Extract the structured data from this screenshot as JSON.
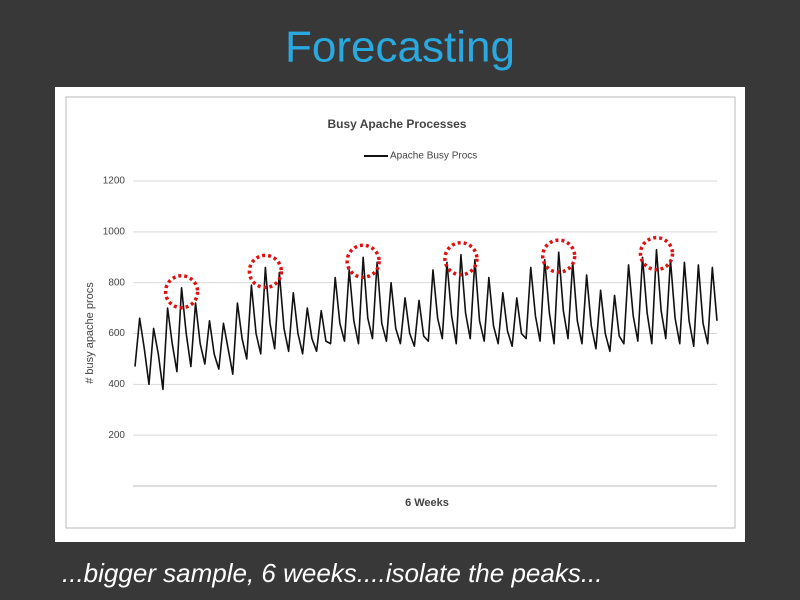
{
  "slide": {
    "title": "Forecasting",
    "caption": "...bigger sample, 6 weeks....isolate the peaks..."
  },
  "chart_data": {
    "type": "line",
    "title": "Busy Apache Processes",
    "xlabel": "6 Weeks",
    "ylabel": "# busy apache procs",
    "ylim": [
      0,
      1200
    ],
    "yticks": [
      200,
      400,
      600,
      800,
      1000,
      1200
    ],
    "grid": true,
    "legend": "top",
    "series": [
      {
        "name": "Apache Busy Procs",
        "color": "#111111",
        "values": [
          470,
          660,
          540,
          400,
          620,
          520,
          380,
          700,
          560,
          450,
          780,
          600,
          470,
          720,
          560,
          480,
          650,
          520,
          460,
          640,
          540,
          440,
          720,
          580,
          500,
          790,
          600,
          520,
          860,
          640,
          540,
          840,
          620,
          530,
          760,
          600,
          520,
          700,
          580,
          530,
          690,
          570,
          560,
          820,
          640,
          570,
          850,
          650,
          560,
          900,
          660,
          580,
          880,
          640,
          570,
          800,
          620,
          560,
          740,
          600,
          550,
          730,
          590,
          570,
          850,
          660,
          580,
          880,
          670,
          560,
          910,
          680,
          580,
          890,
          650,
          570,
          820,
          630,
          560,
          760,
          610,
          550,
          740,
          600,
          580,
          860,
          670,
          570,
          890,
          680,
          560,
          920,
          690,
          580,
          880,
          650,
          560,
          830,
          630,
          540,
          770,
          600,
          530,
          750,
          590,
          560,
          870,
          670,
          570,
          900,
          680,
          560,
          930,
          690,
          580,
          890,
          660,
          560,
          880,
          650,
          550,
          870,
          640,
          560,
          860,
          650
        ]
      }
    ]
  }
}
